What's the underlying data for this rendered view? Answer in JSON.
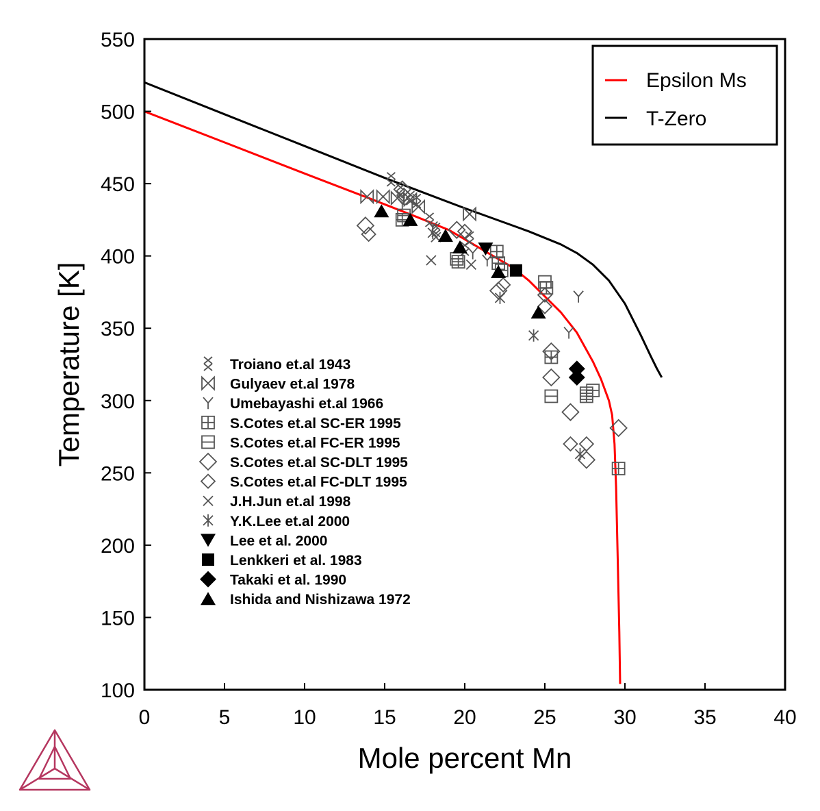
{
  "chart_data": {
    "type": "scatter",
    "title": "",
    "xlabel": "Mole percent Mn",
    "ylabel": "Temperature [K]",
    "xlim": [
      0,
      40
    ],
    "ylim": [
      100,
      550
    ],
    "xticks": [
      0,
      5,
      10,
      15,
      20,
      25,
      30,
      35,
      40
    ],
    "yticks": [
      100,
      150,
      200,
      250,
      300,
      350,
      400,
      450,
      500,
      550
    ],
    "grid": false,
    "legend_position": "top-right",
    "colors": {
      "epsilon_ms": "#ff0000",
      "t_zero": "#000000",
      "points": "#555555",
      "logo": "#b5365f"
    },
    "lines": [
      {
        "name": "Epsilon Ms",
        "color": "#ff0000",
        "x": [
          0,
          5,
          10,
          14,
          17,
          19,
          21,
          23,
          24,
          25,
          26,
          27,
          28,
          28.5,
          29,
          29.2,
          29.35,
          29.45,
          29.55,
          29.65,
          29.7
        ],
        "y": [
          500,
          478.5,
          457,
          440,
          427,
          418,
          405,
          392,
          383,
          372,
          361,
          347,
          327,
          315,
          300,
          290,
          270,
          240,
          190,
          140,
          104
        ]
      },
      {
        "name": "T-Zero",
        "color": "#000000",
        "x": [
          0,
          5,
          10,
          15,
          20,
          24,
          26,
          27,
          28,
          29,
          30,
          31,
          31.6,
          32,
          32.3
        ],
        "y": [
          520,
          498,
          476,
          454,
          433,
          417,
          408,
          402,
          394,
          383,
          367,
          345,
          331,
          322,
          316
        ]
      }
    ],
    "series": [
      {
        "name": "Troiano et.al 1943",
        "marker": "double-x",
        "x": [
          15.4,
          16.0,
          16.6,
          17.0,
          17.8,
          18.2,
          20.3,
          20.0
        ],
        "y": [
          453,
          445,
          440,
          438,
          425,
          418,
          412,
          405
        ]
      },
      {
        "name": "Gulyaev et.al 1978",
        "marker": "bowtie",
        "x": [
          13.9,
          14.9,
          15.8,
          16.6,
          17.1,
          20.3
        ],
        "y": [
          441,
          441,
          440,
          439,
          434,
          429
        ]
      },
      {
        "name": "Umebayashi et.al 1966",
        "marker": "y",
        "x": [
          16.1,
          18.0,
          20.5,
          21.4,
          26.5,
          27.1
        ],
        "y": [
          436,
          420,
          402,
          397,
          347,
          372
        ]
      },
      {
        "name": "S.Cotes et.al SC-ER 1995",
        "marker": "square-plus",
        "x": [
          16.1,
          19.6,
          22.0,
          22.1,
          25.1,
          25.4,
          27.6,
          29.6
        ],
        "y": [
          425,
          396,
          403,
          395,
          378,
          330,
          303,
          253
        ]
      },
      {
        "name": "S.Cotes et.al FC-ER 1995",
        "marker": "square-hline",
        "x": [
          16.2,
          19.5,
          22.3,
          25.0,
          25.4,
          27.6,
          28.0
        ],
        "y": [
          428,
          398,
          390,
          382,
          303,
          305,
          307
        ]
      },
      {
        "name": "S.Cotes et.al SC-DLT 1995",
        "marker": "diamond-large",
        "x": [
          13.8,
          16.1,
          19.5,
          22.1,
          25.4,
          25.4,
          26.6,
          27.6,
          29.6
        ],
        "y": [
          421,
          446,
          418,
          376,
          334,
          316,
          292,
          259,
          281
        ]
      },
      {
        "name": "S.Cotes et.al FC-DLT 1995",
        "marker": "diamond-small",
        "x": [
          14.0,
          16.2,
          20.0,
          22.4,
          25.0,
          25.0,
          26.6,
          27.6
        ],
        "y": [
          415,
          442,
          417,
          380,
          373,
          365,
          270,
          270
        ]
      },
      {
        "name": "J.H.Jun et.al 1998",
        "marker": "x",
        "x": [
          17.9,
          18.2,
          20.4
        ],
        "y": [
          397,
          413,
          394
        ]
      },
      {
        "name": "Y.K.Lee et.al 2000",
        "marker": "asterisk",
        "x": [
          18.0,
          22.2,
          24.3,
          27.2
        ],
        "y": [
          416,
          371,
          345,
          263
        ]
      },
      {
        "name": "Lee et al. 2000",
        "marker": "triangle-down-filled",
        "x": [
          21.3
        ],
        "y": [
          405
        ]
      },
      {
        "name": "Lenkkeri et al. 1983",
        "marker": "square-filled",
        "x": [
          23.2
        ],
        "y": [
          390
        ]
      },
      {
        "name": "Takaki et al. 1990",
        "marker": "diamond-filled",
        "x": [
          27.0,
          27.0
        ],
        "y": [
          322,
          316
        ]
      },
      {
        "name": "Ishida and Nishizawa 1972",
        "marker": "triangle-up-filled",
        "x": [
          14.8,
          16.6,
          18.8,
          19.7,
          22.1,
          24.6
        ],
        "y": [
          431,
          425,
          414,
          406,
          389,
          361
        ]
      }
    ]
  }
}
